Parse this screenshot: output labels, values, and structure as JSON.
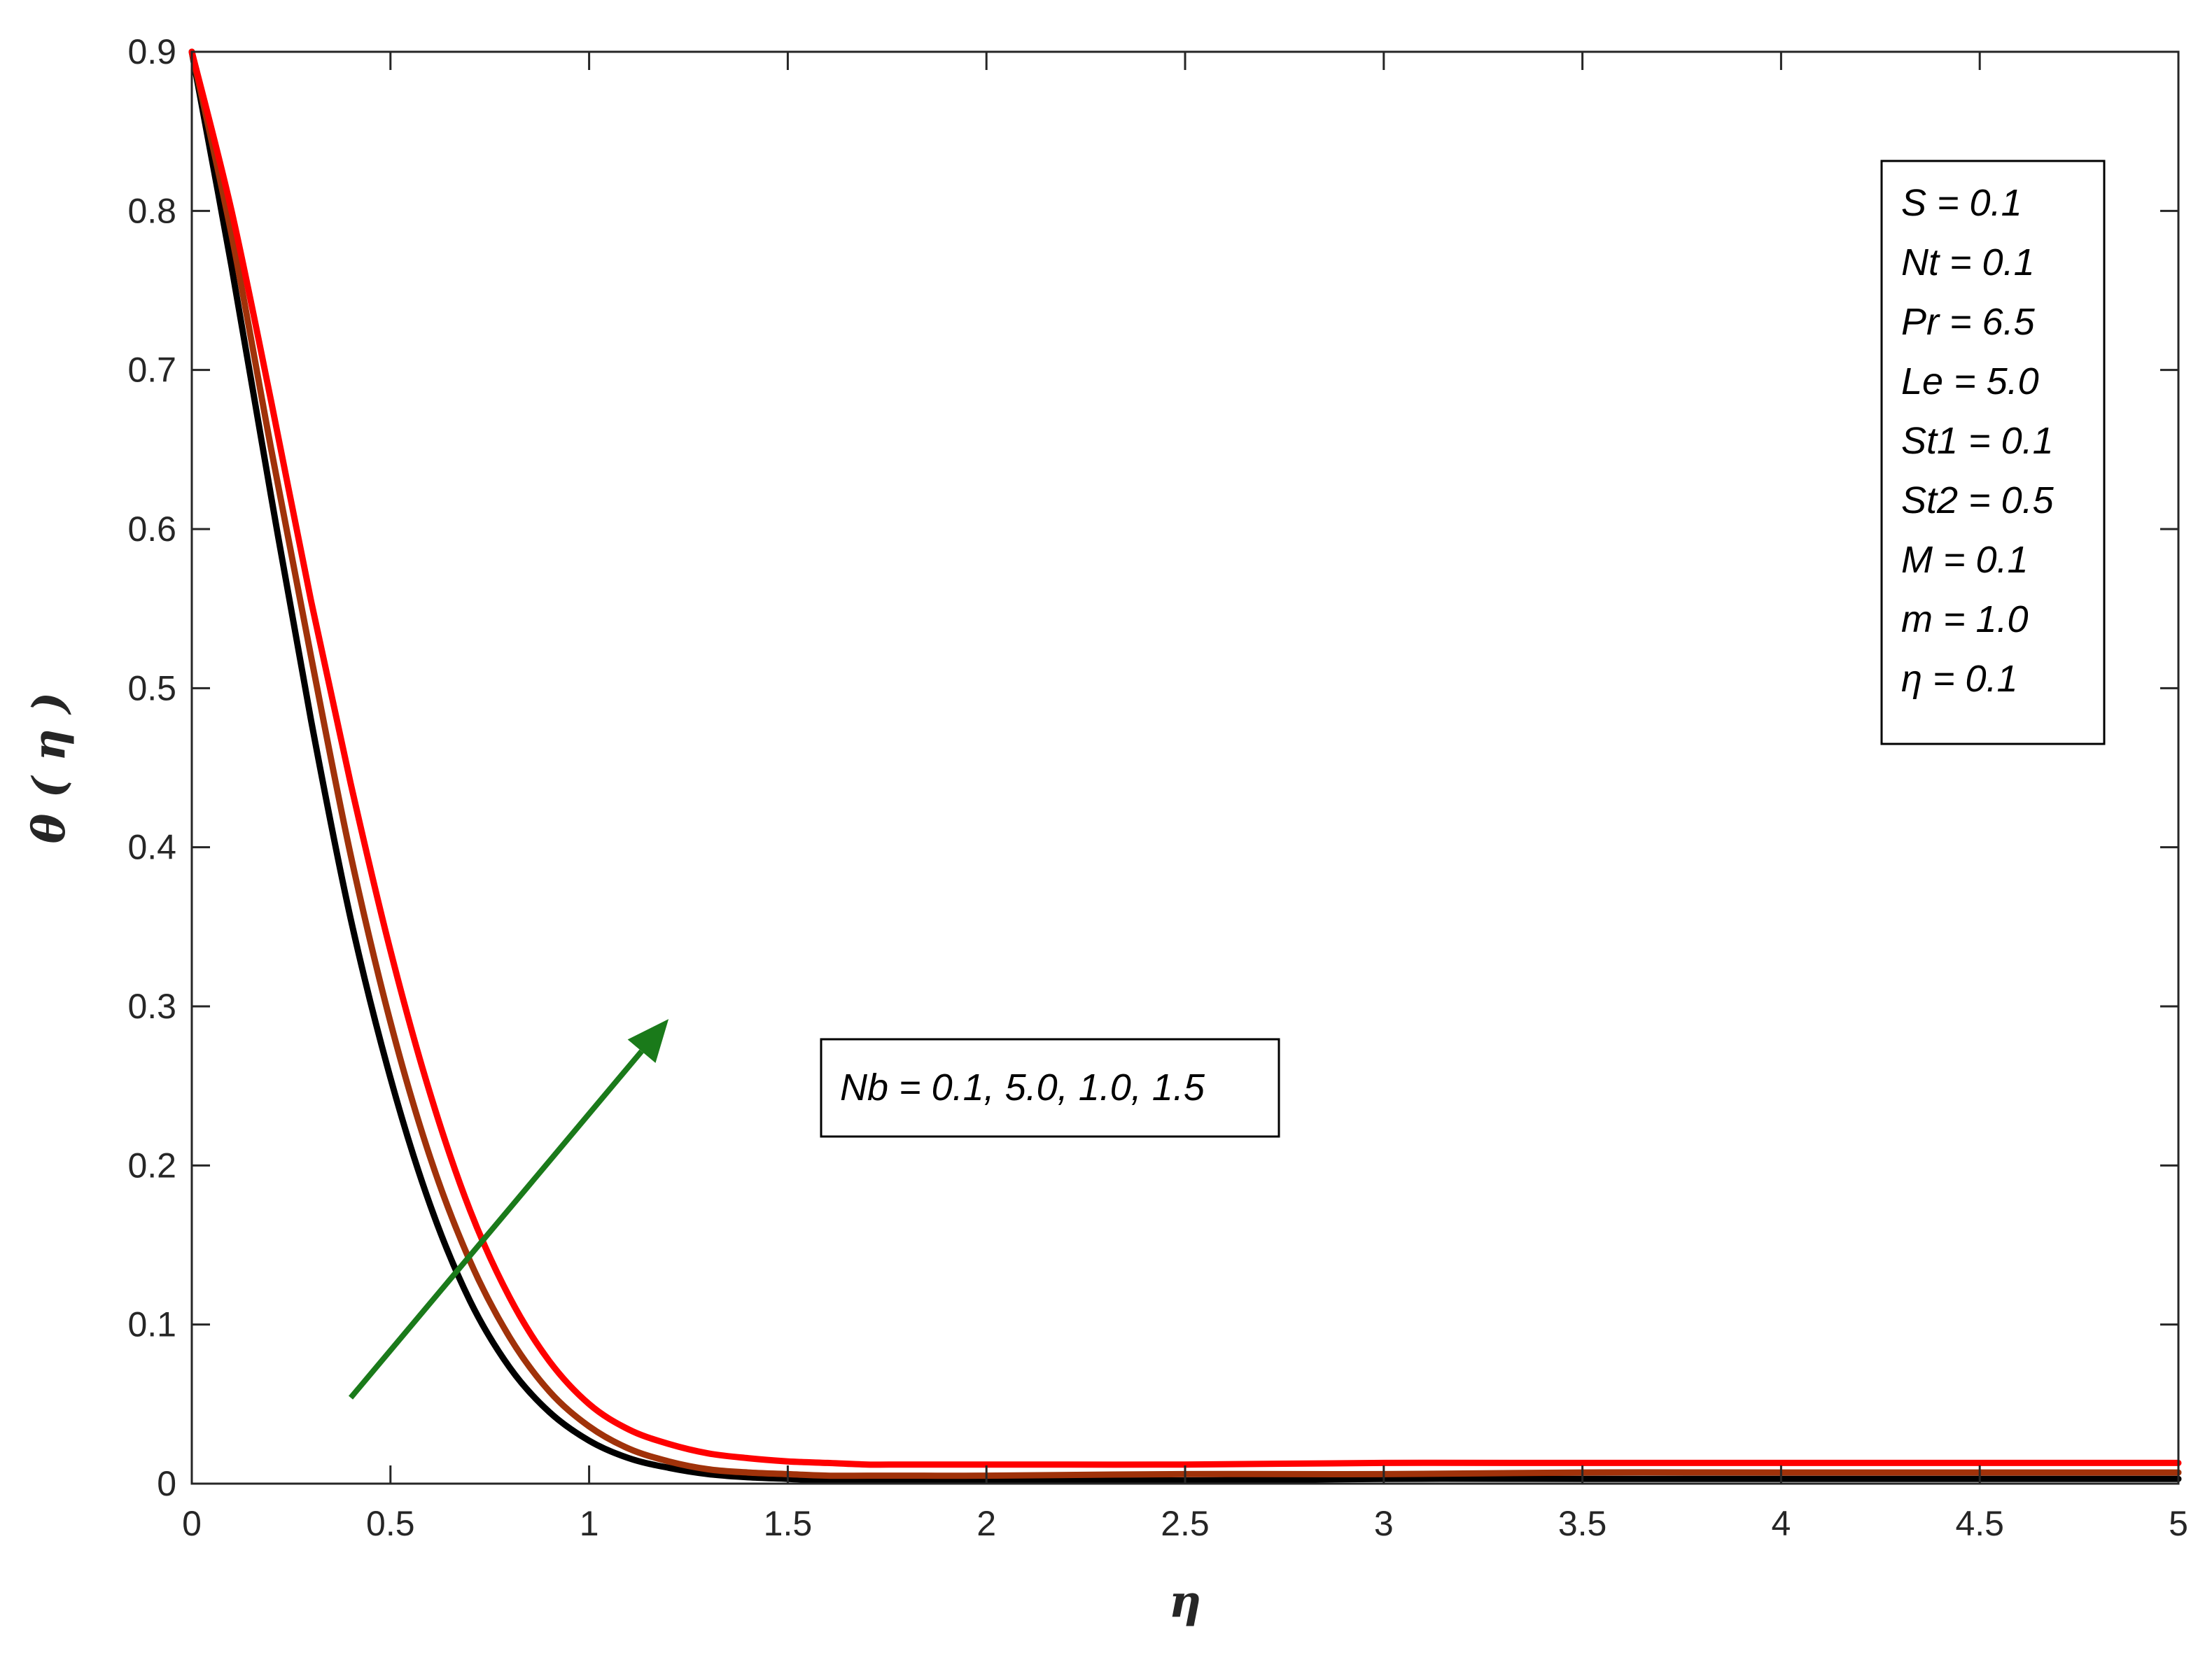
{
  "chart_data": {
    "type": "line",
    "title": "",
    "xlabel": "η",
    "ylabel": "θ ( η )",
    "xlim": [
      0,
      5
    ],
    "ylim": [
      0,
      0.9
    ],
    "x_ticks": [
      "0",
      "0.5",
      "1",
      "1.5",
      "2",
      "2.5",
      "3",
      "3.5",
      "4",
      "4.5",
      "5"
    ],
    "y_ticks": [
      "0",
      "0.1",
      "0.2",
      "0.3",
      "0.4",
      "0.5",
      "0.6",
      "0.7",
      "0.8",
      "0.9"
    ],
    "grid": false,
    "x": [
      0,
      0.1,
      0.2,
      0.3,
      0.4,
      0.5,
      0.6,
      0.7,
      0.8,
      0.9,
      1.0,
      1.1,
      1.2,
      1.3,
      1.4,
      1.5,
      1.6,
      1.7,
      1.8,
      2.0,
      2.5,
      3.0,
      3.5,
      4.0,
      4.5,
      5.0
    ],
    "series": [
      {
        "color": "#000000",
        "values": [
          0.9,
          0.765,
          0.62,
          0.48,
          0.355,
          0.255,
          0.175,
          0.115,
          0.073,
          0.045,
          0.027,
          0.016,
          0.01,
          0.006,
          0.004,
          0.003,
          0.002,
          0.002,
          0.002,
          0.002,
          0.002,
          0.003,
          0.003,
          0.003,
          0.003,
          0.003
        ]
      },
      {
        "color": "#a0320a",
        "values": [
          0.9,
          0.785,
          0.65,
          0.52,
          0.395,
          0.29,
          0.205,
          0.14,
          0.092,
          0.058,
          0.036,
          0.022,
          0.014,
          0.009,
          0.007,
          0.006,
          0.005,
          0.005,
          0.005,
          0.005,
          0.006,
          0.006,
          0.007,
          0.007,
          0.007,
          0.007
        ]
      },
      {
        "color": "#ff0000",
        "values": [
          0.9,
          0.8,
          0.68,
          0.555,
          0.44,
          0.335,
          0.245,
          0.172,
          0.117,
          0.077,
          0.05,
          0.034,
          0.025,
          0.019,
          0.016,
          0.014,
          0.013,
          0.012,
          0.012,
          0.012,
          0.012,
          0.013,
          0.013,
          0.013,
          0.013,
          0.013
        ]
      }
    ],
    "parameters_box": {
      "position": "top-right",
      "lines": [
        "S = 0.1",
        "Nt  = 0.1",
        "Pr = 6.5",
        "Le = 5.0",
        "St1 = 0.1",
        "St2 = 0.5",
        "M  = 0.1",
        "m = 1.0",
        "η = 0.1"
      ]
    },
    "annotation": {
      "text": "Nb  = 0.1, 5.0, 1.0, 1.5",
      "arrow_color": "#1a7a1a",
      "arrow_from": [
        0.4,
        0.054
      ],
      "arrow_to": [
        1.2,
        0.292
      ]
    }
  }
}
